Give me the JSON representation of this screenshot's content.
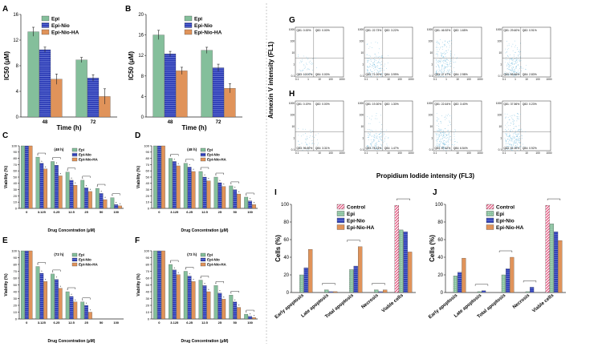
{
  "figure": {
    "panel_letters": {
      "A": "A",
      "B": "B",
      "C": "C",
      "D": "D",
      "E": "E",
      "F": "F",
      "G": "G",
      "H": "H",
      "I": "I",
      "J": "J"
    },
    "flow_xlabel": "Propidium Iodide intensity (FL3)",
    "flow_ylabel": "Annexin V intensity (FL1)",
    "flow_axis_ticks": [
      "0.1",
      "1",
      "10",
      "100",
      "1000"
    ],
    "flow_rows": [
      {
        "panel": "G",
        "plots": [
          {
            "q1": "Q81: 0.00%",
            "q2": "Q82: 0.00%",
            "q3": "Q83: 100.0%",
            "q4": "Q84: 0.00%",
            "density": 0.02
          },
          {
            "q1": "Q81: 22.73%",
            "q2": "Q82: 3.22%",
            "q3": "Q83: 71.00%",
            "q4": "Q84: 3.99%",
            "density": 0.4
          },
          {
            "q1": "Q81: 46.92%",
            "q2": "Q82: 1.65%",
            "q3": "Q83: 47.47%",
            "q4": "Q84: 2.98%",
            "density": 0.7
          },
          {
            "q1": "Q81: 29.60%",
            "q2": "Q82: 0.91%",
            "q3": "Q83: 66.66%",
            "q4": "Q84: 2.83%",
            "density": 0.55
          }
        ]
      },
      {
        "panel": "H",
        "plots": [
          {
            "q1": "Q81: 0.19%",
            "q2": "Q82: 0.00%",
            "q3": "Q83: 96.80%",
            "q4": "Q84: 3.31%",
            "density": 0.02
          },
          {
            "q1": "Q81: 19.30%",
            "q2": "Q82: 1.30%",
            "q3": "Q83: 78.13%",
            "q4": "Q84: 1.47%",
            "density": 0.4
          },
          {
            "q1": "Q81: 22.64%",
            "q2": "Q82: 3.40%",
            "q3": "Q83: 67.42%",
            "q4": "Q84: 6.54%",
            "density": 0.6
          },
          {
            "q1": "Q81: 37.56%",
            "q2": "Q82: 0.23%",
            "q3": "Q83: 61.30%",
            "q4": "Q84: 0.92%",
            "density": 0.7
          }
        ]
      }
    ]
  },
  "colors": {
    "epi": "#84bf9b",
    "nio": "#2030b0",
    "ha": "#e0935a",
    "control": "#e03a6a",
    "axis": "#222222",
    "flow": "#5bb0d8"
  },
  "chart_data": [
    {
      "id": "A",
      "type": "bar",
      "title": "",
      "xlabel": "Time (h)",
      "ylabel": "IC50 (μM)",
      "ylim": [
        0,
        16
      ],
      "yticks": [
        0,
        4,
        8,
        12,
        16
      ],
      "categories": [
        "48",
        "72"
      ],
      "series": [
        {
          "name": "Epi",
          "values": [
            13.3,
            8.9
          ],
          "errors": [
            0.7,
            0.4
          ]
        },
        {
          "name": "Epi-Nio",
          "values": [
            10.5,
            6.1
          ],
          "errors": [
            0.4,
            0.5
          ]
        },
        {
          "name": "Epi-Nio-HA",
          "values": [
            5.9,
            3.2
          ],
          "errors": [
            0.8,
            1.2
          ]
        }
      ]
    },
    {
      "id": "B",
      "type": "bar",
      "title": "",
      "xlabel": "Time (h)",
      "ylabel": "IC50 (μM)",
      "ylim": [
        0,
        20
      ],
      "yticks": [
        0,
        4,
        8,
        12,
        16,
        20
      ],
      "categories": [
        "48",
        "72"
      ],
      "series": [
        {
          "name": "Epi",
          "values": [
            16.0,
            13.0
          ],
          "errors": [
            0.9,
            0.6
          ]
        },
        {
          "name": "Epi-Nio",
          "values": [
            12.3,
            9.6
          ],
          "errors": [
            0.5,
            0.7
          ]
        },
        {
          "name": "Epi-Nio-HA",
          "values": [
            9.0,
            5.6
          ],
          "errors": [
            0.7,
            0.9
          ]
        }
      ]
    },
    {
      "id": "C",
      "type": "bar",
      "title": "(48 h)",
      "xlabel": "Drug Concentration (μM)",
      "ylabel": "Viability (%)",
      "ylim": [
        0,
        100
      ],
      "yticks": [
        0,
        10,
        20,
        30,
        40,
        50,
        60,
        70,
        80,
        90,
        100
      ],
      "categories": [
        "0",
        "3.125",
        "6.25",
        "12.5",
        "25",
        "50",
        "100"
      ],
      "series": [
        {
          "name": "Epi",
          "values": [
            100,
            82,
            75,
            58,
            45,
            32,
            17
          ]
        },
        {
          "name": "Epi-Nio",
          "values": [
            100,
            72,
            69,
            45,
            33,
            24,
            6
          ]
        },
        {
          "name": "Epi-Nio-HA",
          "values": [
            100,
            63,
            52,
            37,
            27,
            14,
            4
          ]
        }
      ]
    },
    {
      "id": "D",
      "type": "bar",
      "title": "(48 h)",
      "xlabel": "Drug Concentration (μM)",
      "ylabel": "Viability (%)",
      "ylim": [
        0,
        100
      ],
      "yticks": [
        0,
        10,
        20,
        30,
        40,
        50,
        60,
        70,
        80,
        90,
        100
      ],
      "categories": [
        "0",
        "3.125",
        "6.25",
        "12.5",
        "25",
        "50",
        "100"
      ],
      "series": [
        {
          "name": "Epi",
          "values": [
            100,
            80,
            72,
            59,
            50,
            36,
            18
          ]
        },
        {
          "name": "Epi-Nio",
          "values": [
            100,
            75,
            66,
            50,
            41,
            30,
            12
          ]
        },
        {
          "name": "Epi-Nio-HA",
          "values": [
            100,
            68,
            59,
            44,
            35,
            23,
            6
          ]
        }
      ]
    },
    {
      "id": "E",
      "type": "bar",
      "title": "(72 h)",
      "xlabel": "Drug Concentration (μM)",
      "ylabel": "Viability (%)",
      "ylim": [
        0,
        100
      ],
      "yticks": [
        0,
        10,
        20,
        30,
        40,
        50,
        60,
        70,
        80,
        90,
        100
      ],
      "categories": [
        "0",
        "3.125",
        "6.25",
        "12.5",
        "25",
        "50",
        "100"
      ],
      "series": [
        {
          "name": "Epi",
          "values": [
            100,
            77,
            66,
            40,
            25,
            0,
            0
          ]
        },
        {
          "name": "Epi-Nio",
          "values": [
            100,
            67,
            58,
            33,
            20,
            0,
            0
          ]
        },
        {
          "name": "Epi-Nio-HA",
          "values": [
            100,
            55,
            45,
            25,
            10,
            0,
            0
          ]
        }
      ]
    },
    {
      "id": "F",
      "type": "bar",
      "title": "(72 h)",
      "xlabel": "Drug Concentration (μM)",
      "ylabel": "Viability (%)",
      "ylim": [
        0,
        100
      ],
      "yticks": [
        0,
        10,
        20,
        30,
        40,
        50,
        60,
        70,
        80,
        90,
        100
      ],
      "categories": [
        "0",
        "3.125",
        "6.25",
        "12.5",
        "25",
        "50",
        "100"
      ],
      "series": [
        {
          "name": "Epi",
          "values": [
            100,
            80,
            70,
            57,
            49,
            35,
            7
          ]
        },
        {
          "name": "Epi-Nio",
          "values": [
            100,
            72,
            63,
            49,
            38,
            25,
            4
          ]
        },
        {
          "name": "Epi-Nio-HA",
          "values": [
            100,
            65,
            55,
            40,
            29,
            17,
            2
          ]
        }
      ]
    },
    {
      "id": "I",
      "type": "bar",
      "title": "",
      "xlabel": "",
      "ylabel": "Cells (%)",
      "ylim": [
        0,
        100
      ],
      "yticks": [
        0,
        20,
        40,
        60,
        80,
        100
      ],
      "categories": [
        "Early apoptosis",
        "Late apoptosis",
        "Total apoptosis",
        "Necrosis",
        "Viable cells"
      ],
      "series": [
        {
          "name": "Control",
          "values": [
            0,
            0,
            0,
            0,
            99
          ]
        },
        {
          "name": "Epi",
          "values": [
            20,
            3,
            26,
            3,
            71
          ]
        },
        {
          "name": "Epi-Nio",
          "values": [
            28,
            1,
            30,
            1,
            69
          ]
        },
        {
          "name": "Epi-Nio-HA",
          "values": [
            49,
            1,
            52,
            3,
            46
          ]
        }
      ]
    },
    {
      "id": "J",
      "type": "bar",
      "title": "",
      "xlabel": "",
      "ylabel": "Cells (%)",
      "ylim": [
        0,
        100
      ],
      "yticks": [
        0,
        20,
        40,
        60,
        80,
        100
      ],
      "categories": [
        "Early apoptosis",
        "Late apoptosis",
        "Total apoptosis",
        "Necrosis",
        "Viable cells"
      ],
      "series": [
        {
          "name": "Control",
          "values": [
            0,
            0,
            0,
            0,
            99
          ]
        },
        {
          "name": "Epi",
          "values": [
            19,
            1,
            20,
            1,
            78
          ]
        },
        {
          "name": "Epi-Nio",
          "values": [
            23,
            2,
            27,
            6,
            69
          ]
        },
        {
          "name": "Epi-Nio-HA",
          "values": [
            39,
            0,
            40,
            0,
            59
          ]
        }
      ]
    }
  ]
}
